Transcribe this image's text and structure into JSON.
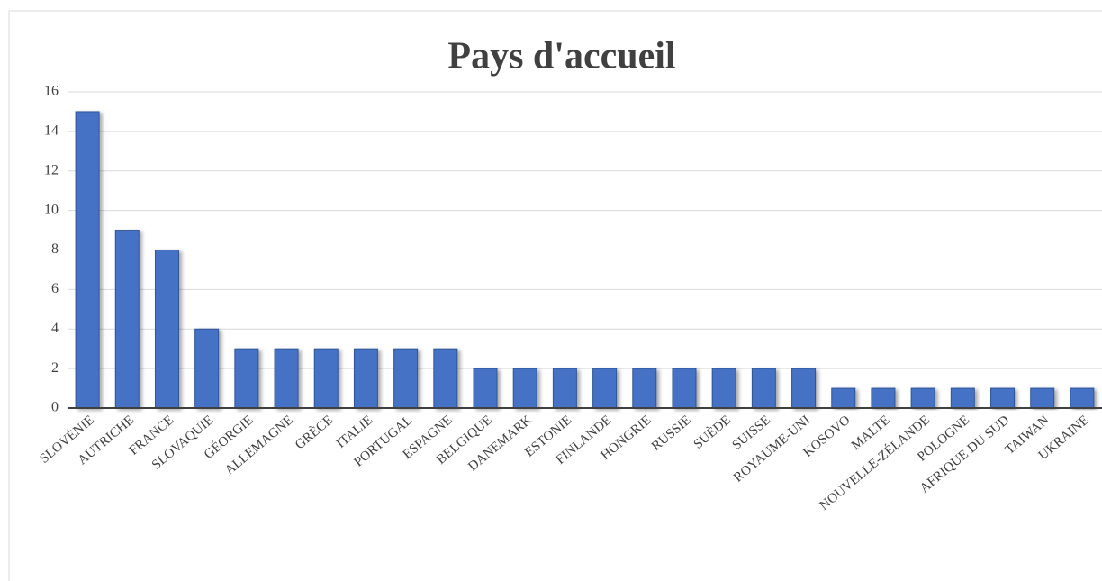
{
  "chart_data": {
    "type": "bar",
    "title": "Pays d'accueil",
    "categories": [
      "SLOVÉNIE",
      "AUTRICHE",
      "FRANCE",
      "SLOVAQUIE",
      "GÉORGIE",
      "ALLEMAGNE",
      "GRÈCE",
      "ITALIE",
      "PORTUGAL",
      "ESPAGNE",
      "BELGIQUE",
      "DANEMARK",
      "ESTONIE",
      "FINLANDE",
      "HONGRIE",
      "RUSSIE",
      "SUÈDE",
      "SUISSE",
      "ROYAUME-UNI",
      "KOSOVO",
      "MALTE",
      "NOUVELLE-ZÉLANDE",
      "POLOGNE",
      "AFRIQUE DU SUD",
      "TAIWAN",
      "UKRAINE"
    ],
    "values": [
      15,
      9,
      8,
      4,
      3,
      3,
      3,
      3,
      3,
      3,
      2,
      2,
      2,
      2,
      2,
      2,
      2,
      2,
      2,
      1,
      1,
      1,
      1,
      1,
      1,
      1
    ],
    "color": "#4472c4",
    "ylim": [
      0,
      16
    ],
    "yticks": [
      0,
      2,
      4,
      6,
      8,
      10,
      12,
      14,
      16
    ],
    "grid": true
  }
}
